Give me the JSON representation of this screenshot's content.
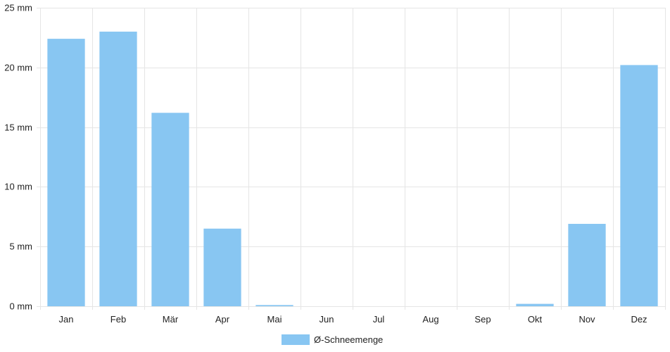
{
  "chart_data": {
    "type": "bar",
    "categories": [
      "Jan",
      "Feb",
      "Mär",
      "Apr",
      "Mai",
      "Jun",
      "Jul",
      "Aug",
      "Sep",
      "Okt",
      "Nov",
      "Dez"
    ],
    "series": [
      {
        "name": "Ø-Schneemenge",
        "values": [
          22.4,
          23.0,
          16.2,
          6.5,
          0.1,
          0,
          0,
          0,
          0,
          0.2,
          6.9,
          20.2
        ],
        "color": "#88c6f2"
      }
    ],
    "yticks": [
      {
        "value": 0,
        "label": "0 mm"
      },
      {
        "value": 5,
        "label": "5 mm"
      },
      {
        "value": 10,
        "label": "10 mm"
      },
      {
        "value": 15,
        "label": "15 mm"
      },
      {
        "value": 20,
        "label": "20 mm"
      },
      {
        "value": 25,
        "label": "25 mm"
      }
    ],
    "ylim": [
      0,
      25
    ],
    "grid": true,
    "legend": "bottom-center",
    "gridColor": "#e5e5e5"
  }
}
